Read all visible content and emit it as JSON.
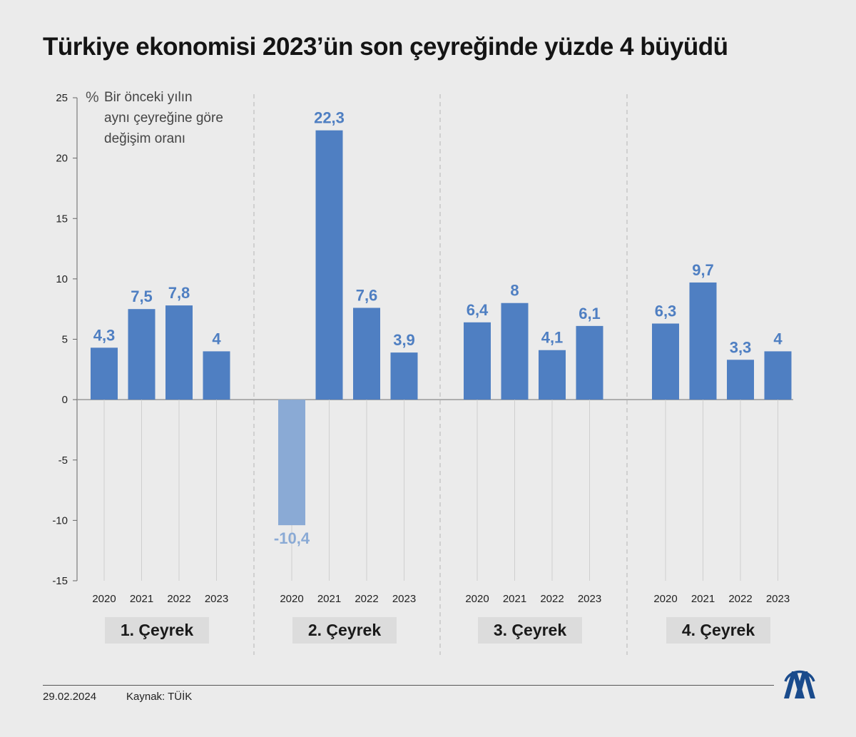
{
  "title": "Türkiye ekonomisi 2023’ün son çeyreğinde yüzde 4 büyüdü",
  "unit_note": {
    "symbol": "%",
    "text": "Bir önceki yılın\naynı çeyreğine göre\ndeğişim oranı"
  },
  "footer": {
    "date": "29.02.2024",
    "source": "Kaynak: TÜİK"
  },
  "logo": {
    "icon": "aa-logo-icon",
    "color": "#1a4b8c"
  },
  "colors": {
    "bar": "#4f7fc2",
    "bar_negative": "#8aaad5",
    "label": "#4f7fc2"
  },
  "chart_data": {
    "type": "bar",
    "ylim": [
      -15,
      25
    ],
    "yticks": [
      "25",
      "20",
      "15",
      "10",
      "5",
      "0",
      "-5",
      "-10",
      "-15"
    ],
    "groups": [
      {
        "name": "1. Çeyrek",
        "years": [
          "2020",
          "2021",
          "2022",
          "2023"
        ],
        "values": [
          4.3,
          7.5,
          7.8,
          4
        ],
        "labels": [
          "4,3",
          "7,5",
          "7,8",
          "4"
        ]
      },
      {
        "name": "2. Çeyrek",
        "years": [
          "2020",
          "2021",
          "2022",
          "2023"
        ],
        "values": [
          -10.4,
          22.3,
          7.6,
          3.9
        ],
        "labels": [
          "-10,4",
          "22,3",
          "7,6",
          "3,9"
        ]
      },
      {
        "name": "3. Çeyrek",
        "years": [
          "2020",
          "2021",
          "2022",
          "2023"
        ],
        "values": [
          6.4,
          8,
          4.1,
          6.1
        ],
        "labels": [
          "6,4",
          "8",
          "4,1",
          "6,1"
        ]
      },
      {
        "name": "4. Çeyrek",
        "years": [
          "2020",
          "2021",
          "2022",
          "2023"
        ],
        "values": [
          6.3,
          9.7,
          3.3,
          4
        ],
        "labels": [
          "6,3",
          "9,7",
          "3,3",
          "4"
        ]
      }
    ]
  }
}
